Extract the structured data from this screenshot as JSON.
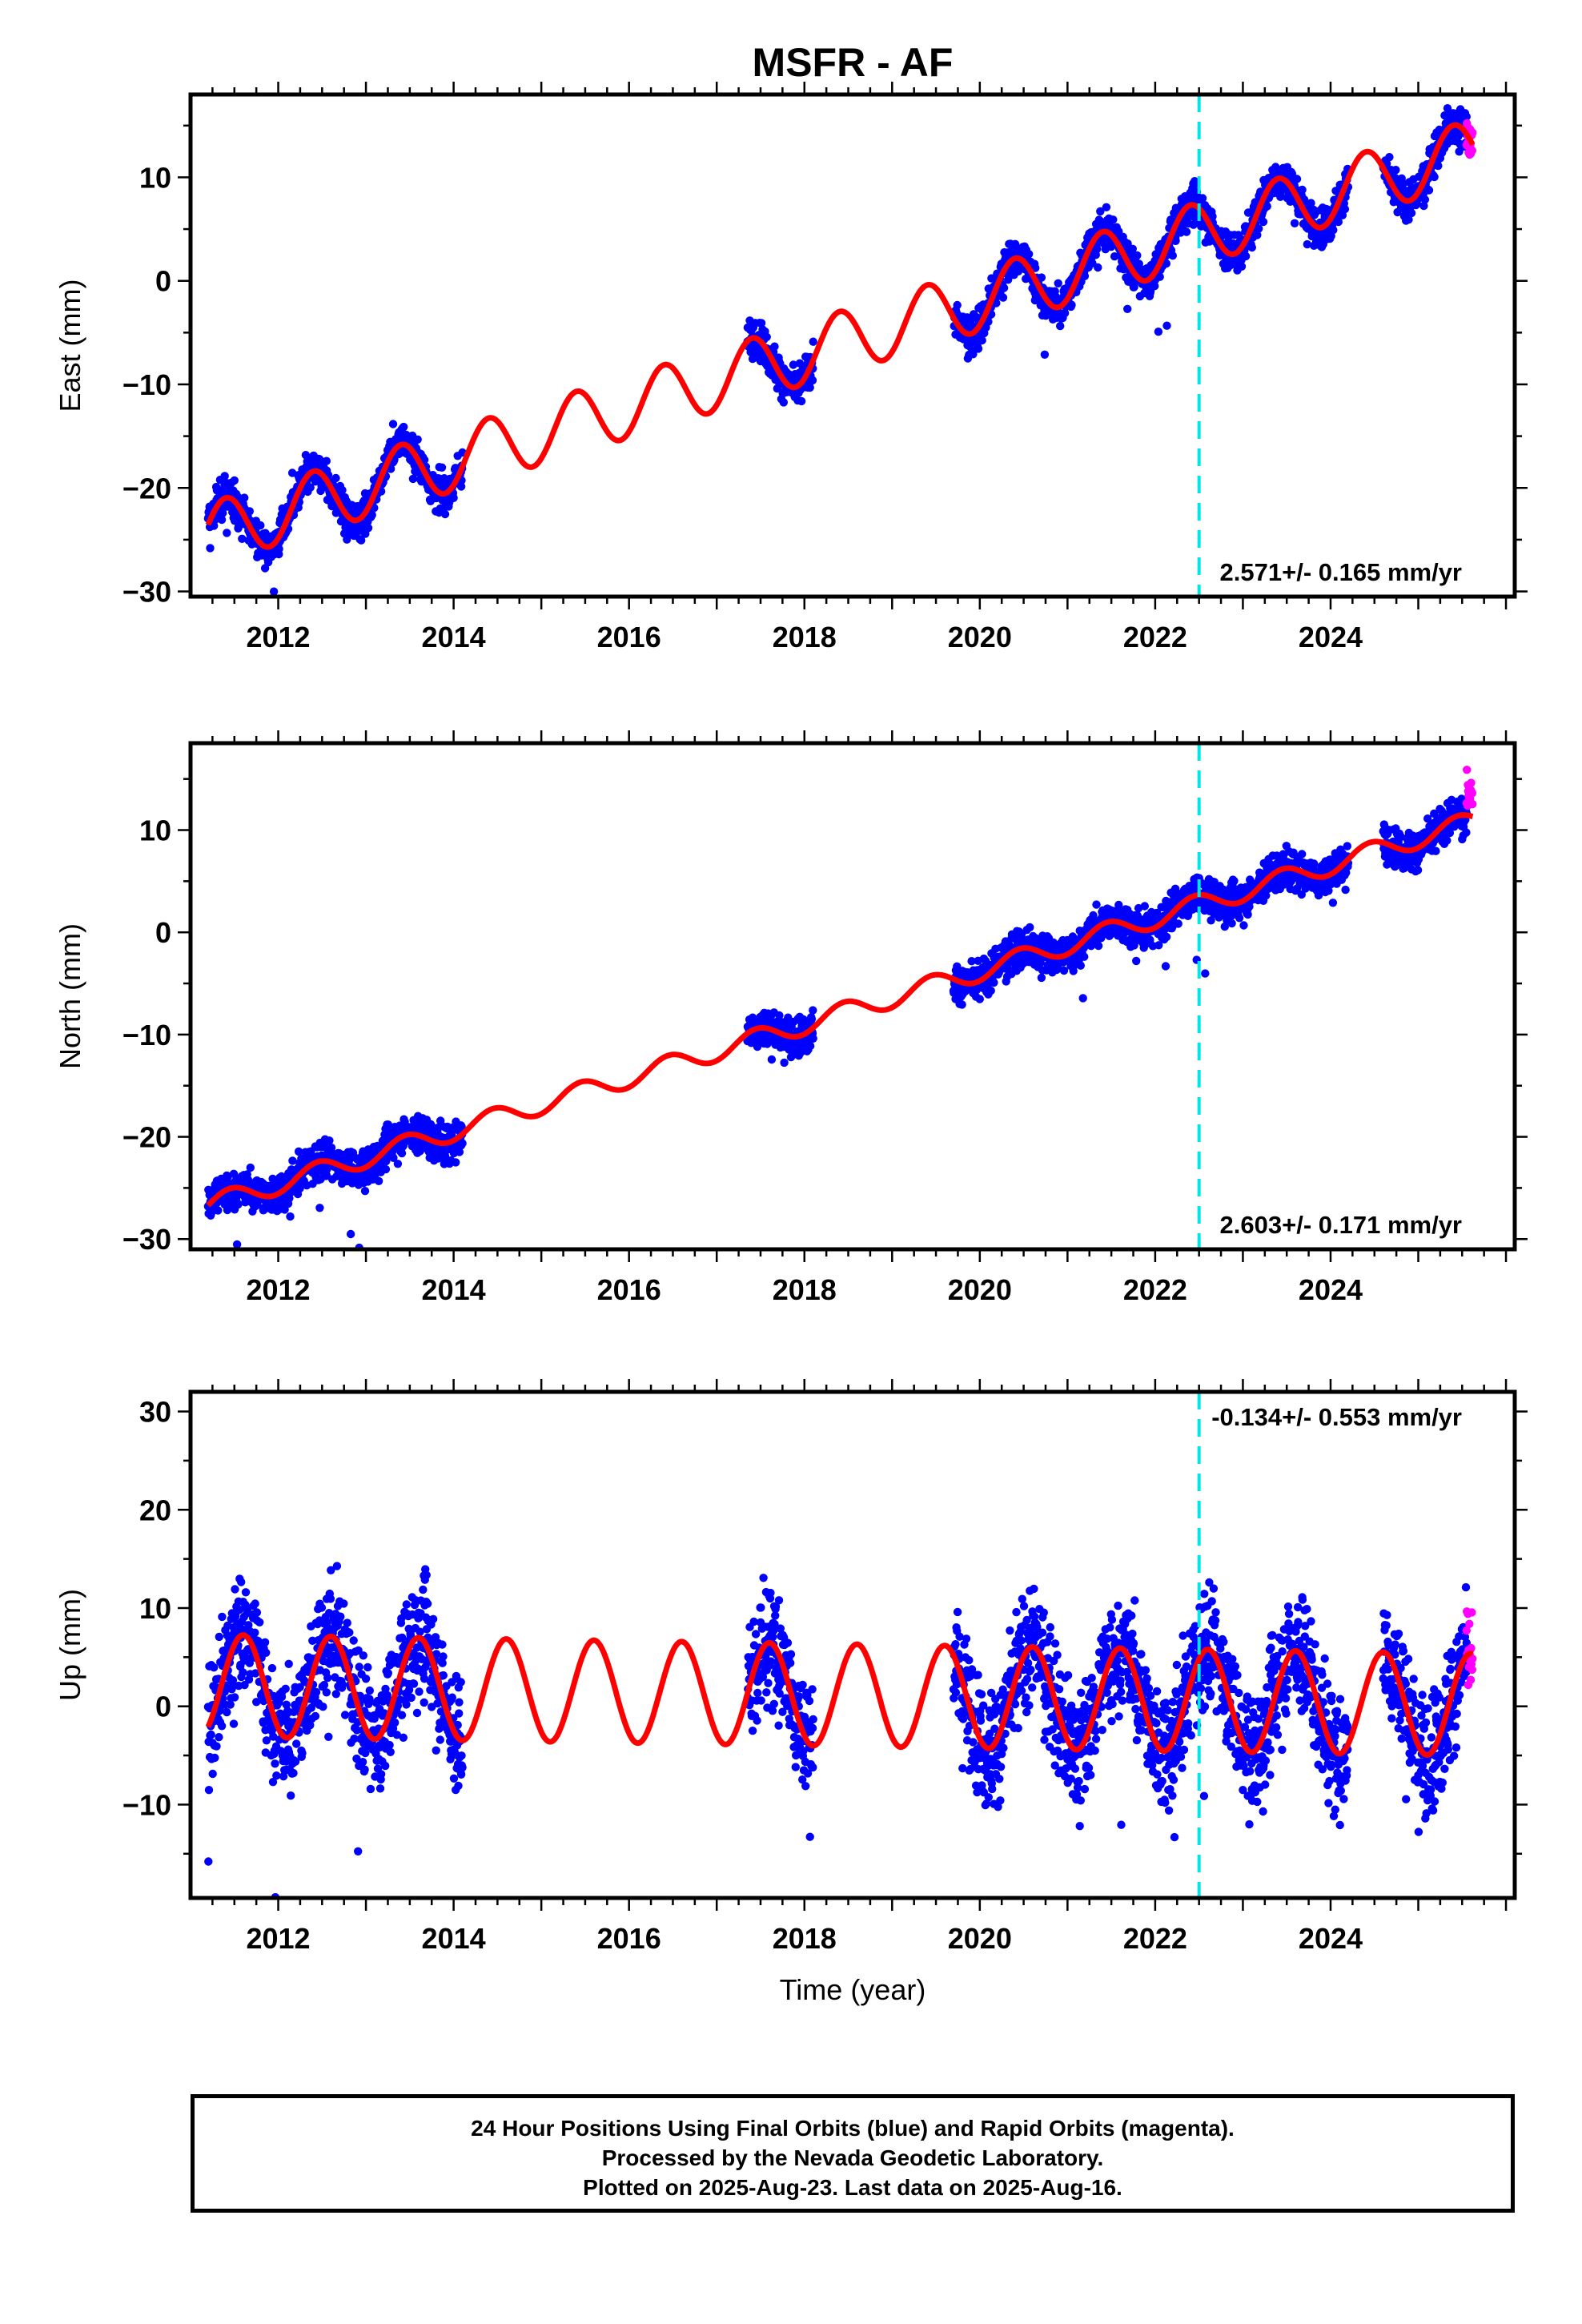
{
  "title": "MSFR - AF",
  "xlabel": "Time (year)",
  "colors": {
    "final": "#0000ff",
    "rapid": "#ff00ff",
    "model": "#ff0000",
    "marker": "#00e5e5"
  },
  "chart_data": [
    {
      "type": "scatter",
      "panel": "east",
      "ylabel": "East (mm)",
      "rate_text": "2.571+/- 0.165 mm/yr",
      "xlim": [
        2011.0,
        2026.1
      ],
      "ylim": [
        -30.5,
        18.0
      ],
      "yticks": [
        -30,
        -20,
        -10,
        0,
        10
      ],
      "xticks": [
        2012,
        2014,
        2016,
        2018,
        2020,
        2022,
        2024
      ],
      "marker_x": 2022.5,
      "model": {
        "intercept_2018": -7.0,
        "rate": 2.571,
        "amplitude": 3.0,
        "peak_phase": 0.4
      },
      "data_segments": [
        [
          2011.2,
          2014.1
        ],
        [
          2017.35,
          2018.1
        ],
        [
          2019.7,
          2024.2
        ],
        [
          2024.6,
          2025.55
        ]
      ],
      "rapid_x": [
        2025.55,
        2025.62
      ],
      "series": [
        {
          "name": "Final Orbits (blue)"
        },
        {
          "name": "Rapid Orbits (magenta)"
        }
      ]
    },
    {
      "type": "scatter",
      "panel": "north",
      "ylabel": "North (mm)",
      "rate_text": "2.603+/- 0.171 mm/yr",
      "xlim": [
        2011.0,
        2026.1
      ],
      "ylim": [
        -31.0,
        18.5
      ],
      "yticks": [
        -30,
        -20,
        -10,
        0,
        10
      ],
      "xticks": [
        2012,
        2014,
        2016,
        2018,
        2020,
        2022,
        2024
      ],
      "marker_x": 2022.5,
      "model": {
        "intercept_2018": -9.0,
        "rate": 2.603,
        "amplitude": 1.0,
        "peak_phase": 0.45
      },
      "data_segments": [
        [
          2011.2,
          2014.1
        ],
        [
          2017.35,
          2018.1
        ],
        [
          2019.7,
          2024.2
        ],
        [
          2024.6,
          2025.55
        ]
      ],
      "rapid_x": [
        2025.55,
        2025.62
      ],
      "series": [
        {
          "name": "Final Orbits (blue)"
        },
        {
          "name": "Rapid Orbits (magenta)"
        }
      ]
    },
    {
      "type": "scatter",
      "panel": "up",
      "ylabel": "Up (mm)",
      "rate_text": "-0.134+/- 0.553 mm/yr",
      "xlim": [
        2011.0,
        2026.1
      ],
      "ylim": [
        -19.5,
        32.0
      ],
      "yticks": [
        -10,
        0,
        10,
        20,
        30
      ],
      "xticks": [
        2012,
        2014,
        2016,
        2018,
        2020,
        2022,
        2024
      ],
      "marker_x": 2022.5,
      "model": {
        "intercept_2018": 1.2,
        "rate": -0.134,
        "amplitude": 5.2,
        "peak_phase": 0.6
      },
      "data_segments": [
        [
          2011.2,
          2014.1
        ],
        [
          2017.35,
          2018.1
        ],
        [
          2019.7,
          2024.2
        ],
        [
          2024.6,
          2025.55
        ]
      ],
      "rapid_x": [
        2025.55,
        2025.62
      ],
      "series": [
        {
          "name": "Final Orbits (blue)"
        },
        {
          "name": "Rapid Orbits (magenta)"
        }
      ]
    }
  ],
  "caption": {
    "line1": "24 Hour Positions Using Final Orbits (blue) and Rapid Orbits (magenta).",
    "line2": "Processed by the Nevada Geodetic Laboratory.",
    "line3": "Plotted on 2025-Aug-23. Last data on 2025-Aug-16."
  }
}
